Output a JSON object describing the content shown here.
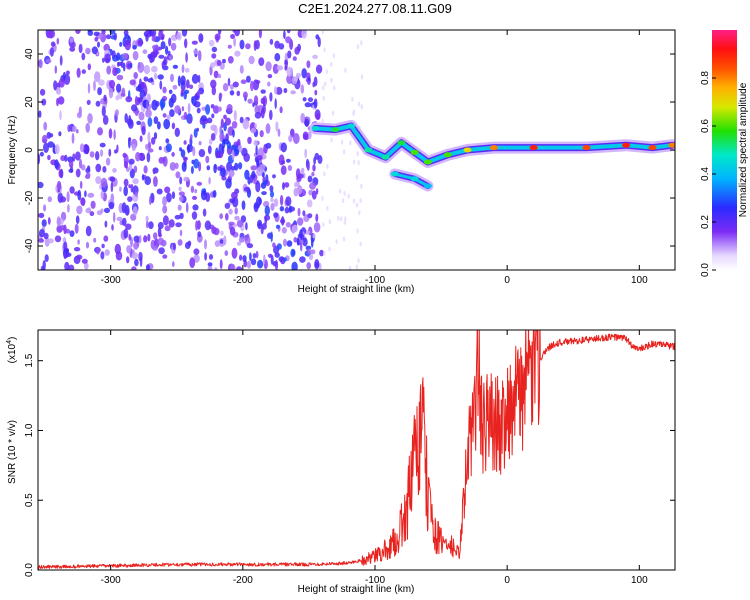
{
  "title": "C2E1.2024.277.08.11.G09",
  "chart_data": [
    {
      "type": "heatmap",
      "xlabel": "Height of straight line (km)",
      "ylabel": "Frequency (Hz)",
      "xlim": [
        -355,
        127
      ],
      "ylim": [
        -50,
        50
      ],
      "xticks": [
        -300,
        -200,
        -100,
        0,
        100
      ],
      "yticks": [
        -40,
        -20,
        0,
        20,
        40
      ],
      "colorbar": {
        "label": "Normalized spectral amplitude",
        "range": [
          0,
          1
        ],
        "ticks": [
          0.0,
          0.2,
          0.4,
          0.6,
          0.8
        ]
      },
      "noise_region_x": [
        -355,
        -140
      ],
      "signal_track": [
        {
          "x": -145,
          "y": 9,
          "amp": 0.45
        },
        {
          "x": -130,
          "y": 8.5,
          "amp": 0.55
        },
        {
          "x": -118,
          "y": 10,
          "amp": 0.45
        },
        {
          "x": -105,
          "y": 0,
          "amp": 0.5
        },
        {
          "x": -92,
          "y": -3,
          "amp": 0.5
        },
        {
          "x": -80,
          "y": 3,
          "amp": 0.55
        },
        {
          "x": -70,
          "y": -1,
          "amp": 0.6
        },
        {
          "x": -60,
          "y": -5,
          "amp": 0.6
        },
        {
          "x": -45,
          "y": -2,
          "amp": 0.6
        },
        {
          "x": -30,
          "y": 0,
          "amp": 0.7
        },
        {
          "x": -10,
          "y": 1,
          "amp": 0.8
        },
        {
          "x": 20,
          "y": 1,
          "amp": 0.9
        },
        {
          "x": 60,
          "y": 1,
          "amp": 0.85
        },
        {
          "x": 90,
          "y": 2,
          "amp": 0.9
        },
        {
          "x": 110,
          "y": 1,
          "amp": 0.85
        },
        {
          "x": 125,
          "y": 2,
          "amp": 0.8
        }
      ],
      "signal_branch": [
        {
          "x": -85,
          "y": -10,
          "amp": 0.45
        },
        {
          "x": -70,
          "y": -12,
          "amp": 0.45
        },
        {
          "x": -60,
          "y": -15,
          "amp": 0.4
        }
      ]
    },
    {
      "type": "line",
      "xlabel": "Height of straight line (km)",
      "ylabel": "SNR (10 * v/v)",
      "y_multiplier_label": "(x10",
      "y_multiplier_exp": "4",
      "xlim": [
        -355,
        127
      ],
      "ylim": [
        0,
        1.72
      ],
      "xticks": [
        -300,
        -200,
        -100,
        0,
        100
      ],
      "yticks": [
        "0.0",
        "0.5",
        "1.0",
        "1.5"
      ],
      "color": "#e8231f",
      "series": [
        {
          "x": [
            -355,
            -300,
            -250,
            -200,
            -150,
            -120,
            -105,
            -95,
            -85,
            -78,
            -72,
            -67,
            -65,
            -62,
            -58,
            -54,
            -50,
            -45,
            -40,
            -36,
            -32,
            -28,
            -24,
            -22,
            -20,
            -15,
            -10,
            -5,
            0,
            5,
            10,
            15,
            20,
            25,
            30,
            35,
            40,
            50,
            60,
            70,
            80,
            90,
            95,
            100,
            110,
            120,
            127
          ],
          "values": [
            0.02,
            0.03,
            0.04,
            0.04,
            0.04,
            0.05,
            0.08,
            0.12,
            0.2,
            0.35,
            0.65,
            0.9,
            1.15,
            0.7,
            0.4,
            0.25,
            0.2,
            0.18,
            0.15,
            0.12,
            0.6,
            0.95,
            1.2,
            1.55,
            1.05,
            1.05,
            1.1,
            1.0,
            1.2,
            1.15,
            1.3,
            1.35,
            1.45,
            1.52,
            1.58,
            1.62,
            1.63,
            1.64,
            1.65,
            1.66,
            1.67,
            1.66,
            1.6,
            1.58,
            1.62,
            1.61,
            1.6
          ]
        }
      ]
    }
  ]
}
